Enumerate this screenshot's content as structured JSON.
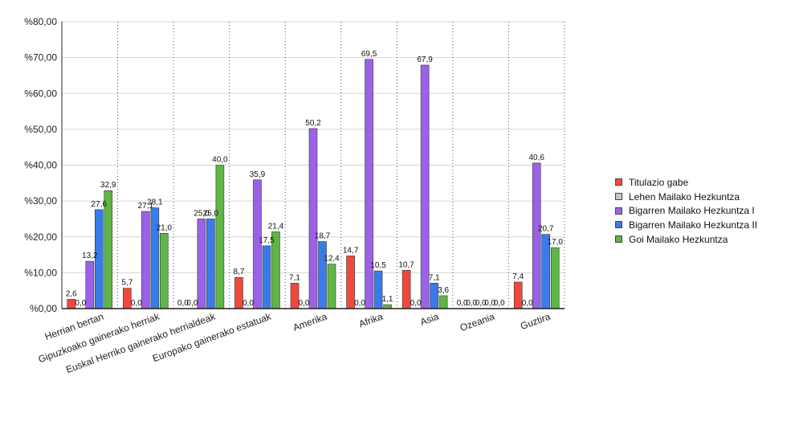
{
  "chart_data": {
    "type": "bar",
    "title": "",
    "xlabel": "",
    "ylabel": "",
    "ylim": [
      0,
      80
    ],
    "y_ticks": [
      "%0,00",
      "%10,00",
      "%20,00",
      "%30,00",
      "%40,00",
      "%50,00",
      "%60,00",
      "%70,00",
      "%80,00"
    ],
    "y_tick_values": [
      0,
      10,
      20,
      30,
      40,
      50,
      60,
      70,
      80
    ],
    "grid": "horizontal solid, vertical dotted between categories",
    "legend_position": "right",
    "categories": [
      "Herrian bertan",
      "Gipuzkoako gainerako herriak",
      "Euskal Herriko gainerako herrialdeak",
      "Europako gainerako estatuak",
      "Amerika",
      "Afrika",
      "Asia",
      "Ozeania",
      "Guztira"
    ],
    "series": [
      {
        "name": "Titulazio gabe",
        "color": "#f0493c",
        "values": [
          2.6,
          5.7,
          0.0,
          8.7,
          7.1,
          14.7,
          10.7,
          0.0,
          7.4
        ],
        "labels": [
          "2,6",
          "5,7",
          "0,0",
          "8,7",
          "7,1",
          "14,7",
          "10,7",
          "0,0",
          "7,4"
        ]
      },
      {
        "name": "Lehen Mailako Hezkuntza",
        "color": "#c8c8c8",
        "values": [
          0.0,
          0.0,
          0.0,
          0.0,
          0.0,
          0.0,
          0.0,
          0.0,
          0.0
        ],
        "labels": [
          "0,0",
          "0,0",
          "0,0",
          "0,0",
          "0,0",
          "0,0",
          "0,0",
          "0,0",
          "0,0"
        ]
      },
      {
        "name": "Bigarren Mailako Hezkuntza I",
        "color": "#9b62e8",
        "values": [
          13.2,
          27.1,
          25.0,
          35.9,
          50.2,
          69.5,
          67.9,
          0.0,
          40.6
        ],
        "labels": [
          "13,2",
          "27,1",
          "25,0",
          "35,9",
          "50,2",
          "69,5",
          "67,9",
          "0,0",
          "40,6"
        ]
      },
      {
        "name": "Bigarren Mailako Hezkuntza II",
        "color": "#3a7bea",
        "values": [
          27.6,
          28.1,
          25.0,
          17.5,
          18.7,
          10.5,
          7.1,
          0.0,
          20.7
        ],
        "labels": [
          "27,6",
          "28,1",
          "25,0",
          "17,5",
          "18,7",
          "10,5",
          "7,1",
          "0,0",
          "20,7"
        ]
      },
      {
        "name": "Goi Mailako Hezkuntza",
        "color": "#5fb646",
        "values": [
          32.9,
          21.0,
          40.0,
          21.4,
          12.4,
          1.1,
          3.6,
          0.0,
          17.0
        ],
        "labels": [
          "32,9",
          "21,0",
          "40,0",
          "21,4",
          "12,4",
          "1,1",
          "3,6",
          "0,0",
          "17,0"
        ]
      }
    ]
  }
}
